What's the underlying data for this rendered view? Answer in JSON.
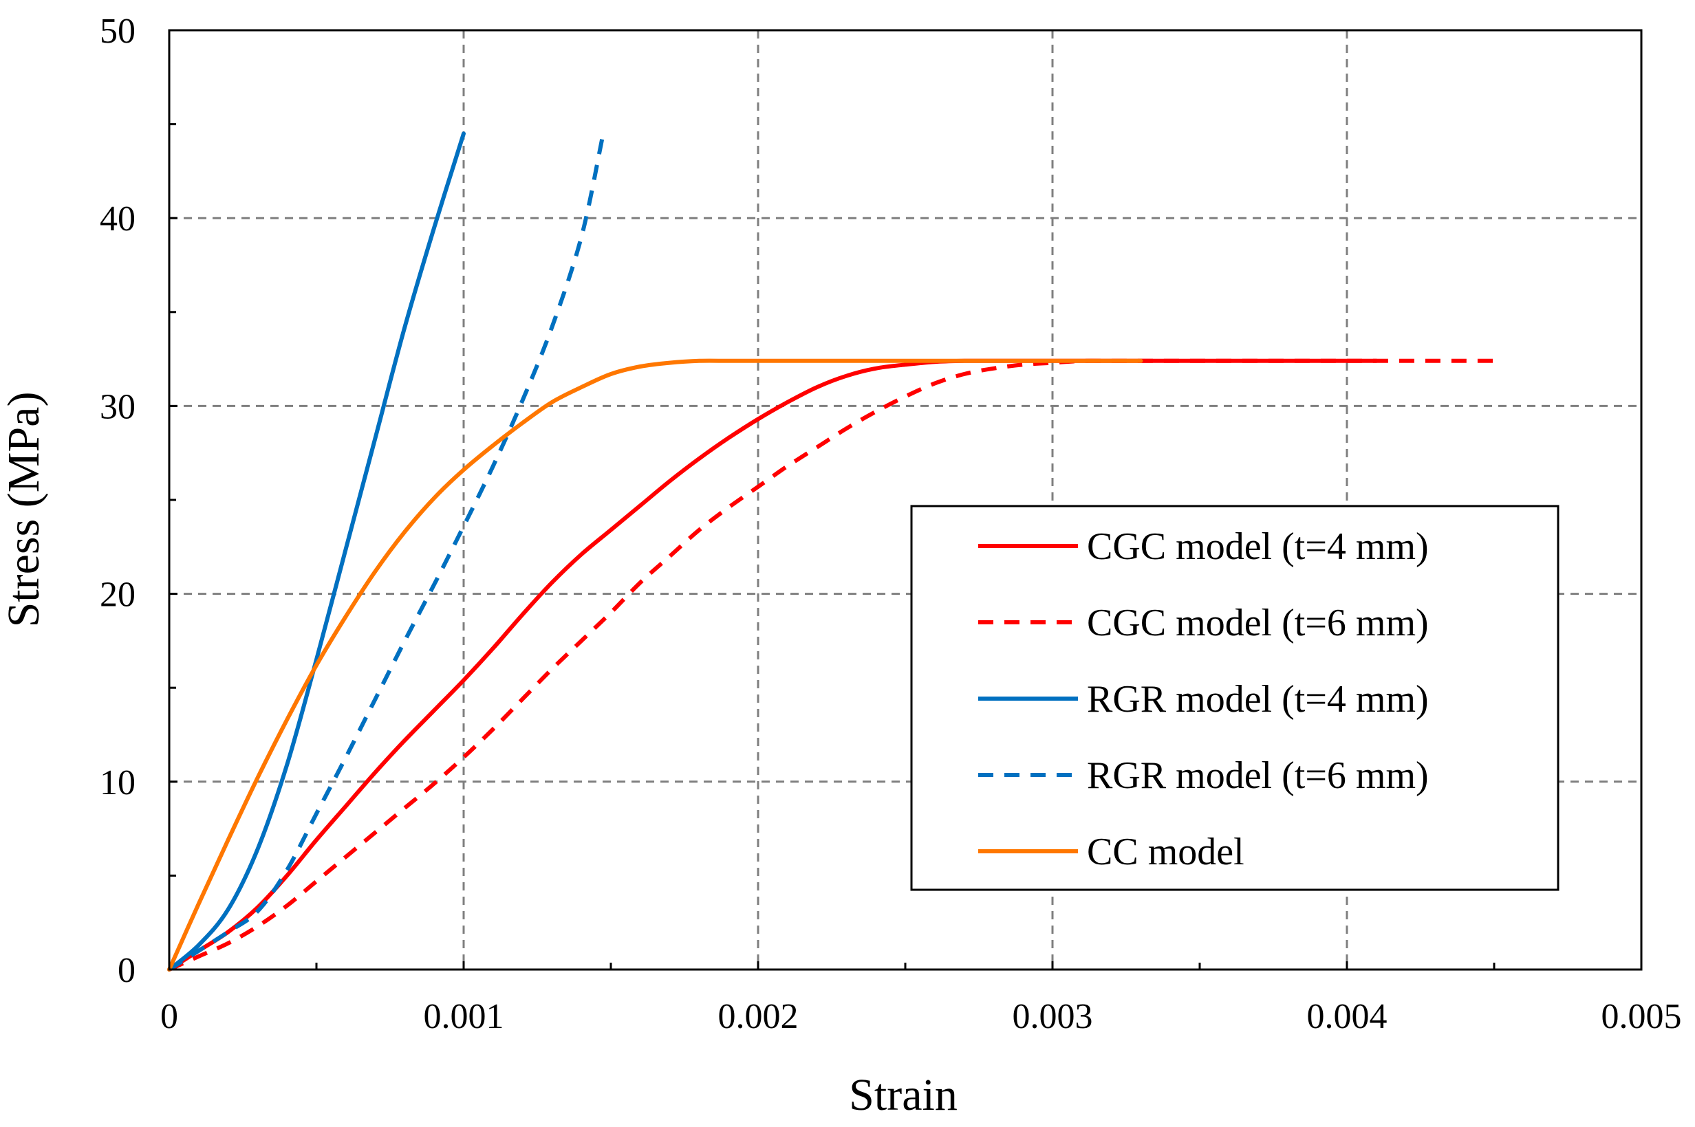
{
  "chart_data": {
    "type": "line",
    "title": "",
    "xlabel": "Strain",
    "ylabel": "Stress (MPa)",
    "xlim": [
      0,
      0.005
    ],
    "ylim": [
      0,
      50
    ],
    "xticks": [
      0,
      0.001,
      0.002,
      0.003,
      0.004,
      0.005
    ],
    "xtick_labels": [
      "0",
      "0.001",
      "0.002",
      "0.003",
      "0.004",
      "0.005"
    ],
    "yticks": [
      0,
      10,
      20,
      30,
      40,
      50
    ],
    "ytick_labels": [
      "0",
      "10",
      "20",
      "30",
      "40",
      "50"
    ],
    "grid": true,
    "legend_position": "center-right",
    "series": [
      {
        "name": "CGC model (t=4 mm)",
        "color": "#ff0000",
        "dash": "solid",
        "x": [
          0,
          0.0001,
          0.0002,
          0.0003,
          0.0004,
          0.0005,
          0.0006,
          0.0007,
          0.0008,
          0.0009,
          0.001,
          0.0011,
          0.0012,
          0.0013,
          0.0014,
          0.0015,
          0.0016,
          0.0017,
          0.0018,
          0.0019,
          0.002,
          0.0021,
          0.0022,
          0.0023,
          0.0024,
          0.0025,
          0.0026,
          0.0027,
          0.0028,
          0.0029,
          0.003,
          0.0031,
          0.0032,
          0.0033,
          0.0034,
          0.0035,
          0.0036,
          0.0037,
          0.0038,
          0.0039,
          0.004,
          0.0041
        ],
        "y": [
          0,
          1.0,
          2.0,
          3.3,
          5.0,
          6.9,
          8.7,
          10.5,
          12.2,
          13.8,
          15.4,
          17.1,
          18.9,
          20.6,
          22.1,
          23.4,
          24.7,
          26.0,
          27.2,
          28.3,
          29.3,
          30.2,
          31.0,
          31.6,
          32.0,
          32.2,
          32.35,
          32.4,
          32.4,
          32.4,
          32.4,
          32.4,
          32.4,
          32.4,
          32.4,
          32.4,
          32.4,
          32.4,
          32.4,
          32.4,
          32.4,
          32.4
        ]
      },
      {
        "name": "CGC model (t=6 mm)",
        "color": "#ff0000",
        "dash": "dashed",
        "x": [
          0,
          0.0001,
          0.0002,
          0.0003,
          0.0004,
          0.0005,
          0.0006,
          0.0007,
          0.0008,
          0.0009,
          0.001,
          0.0011,
          0.0012,
          0.0013,
          0.0014,
          0.0015,
          0.0016,
          0.0017,
          0.0018,
          0.0019,
          0.002,
          0.0021,
          0.0022,
          0.0023,
          0.0024,
          0.0025,
          0.0026,
          0.0027,
          0.0028,
          0.0029,
          0.003,
          0.0031,
          0.0032,
          0.0033,
          0.0034,
          0.0035,
          0.0036,
          0.0037,
          0.0038,
          0.0039,
          0.004,
          0.0041,
          0.0042,
          0.0043,
          0.0044,
          0.0045
        ],
        "y": [
          0,
          0.7,
          1.4,
          2.3,
          3.4,
          4.7,
          6.0,
          7.3,
          8.6,
          9.9,
          11.3,
          12.8,
          14.4,
          16.0,
          17.5,
          19.0,
          20.6,
          22.0,
          23.4,
          24.6,
          25.7,
          26.8,
          27.8,
          28.8,
          29.7,
          30.5,
          31.2,
          31.7,
          32.0,
          32.2,
          32.3,
          32.4,
          32.4,
          32.4,
          32.4,
          32.4,
          32.4,
          32.4,
          32.4,
          32.4,
          32.4,
          32.4,
          32.4,
          32.4,
          32.4,
          32.4
        ]
      },
      {
        "name": "RGR model (t=4 mm)",
        "color": "#0070c0",
        "dash": "solid",
        "x": [
          0,
          0.0001,
          0.0002,
          0.0003,
          0.0004,
          0.0005,
          0.0006,
          0.0007,
          0.0008,
          0.0009,
          0.001
        ],
        "y": [
          0,
          1.3,
          3.2,
          6.4,
          10.9,
          16.5,
          22.4,
          28.3,
          34.2,
          39.5,
          44.5
        ]
      },
      {
        "name": "RGR model (t=6 mm)",
        "color": "#0070c0",
        "dash": "dashed",
        "x": [
          0,
          0.0001,
          0.0002,
          0.0003,
          0.0004,
          0.0005,
          0.0006,
          0.0007,
          0.0008,
          0.0009,
          0.001,
          0.0011,
          0.0012,
          0.0013,
          0.0014,
          0.00147
        ],
        "y": [
          0,
          1.0,
          2.0,
          3.1,
          5.3,
          8.3,
          11.3,
          14.4,
          17.5,
          20.5,
          23.6,
          26.8,
          30.3,
          34.2,
          39.0,
          44.2
        ]
      },
      {
        "name": "CC model",
        "color": "#ff7700",
        "dash": "solid",
        "x": [
          0,
          0.0001,
          0.0002,
          0.0003,
          0.0004,
          0.0005,
          0.0006,
          0.0007,
          0.0008,
          0.0009,
          0.001,
          0.0011,
          0.0012,
          0.0013,
          0.0014,
          0.0015,
          0.0016,
          0.0017,
          0.0018,
          0.0019,
          0.002,
          0.0022,
          0.0024,
          0.0026,
          0.0028,
          0.003,
          0.0033
        ],
        "y": [
          0,
          3.5,
          6.9,
          10.2,
          13.3,
          16.2,
          18.8,
          21.2,
          23.3,
          25.1,
          26.6,
          27.9,
          29.1,
          30.2,
          31.0,
          31.7,
          32.1,
          32.3,
          32.4,
          32.4,
          32.4,
          32.4,
          32.4,
          32.4,
          32.4,
          32.4,
          32.4
        ]
      }
    ]
  }
}
